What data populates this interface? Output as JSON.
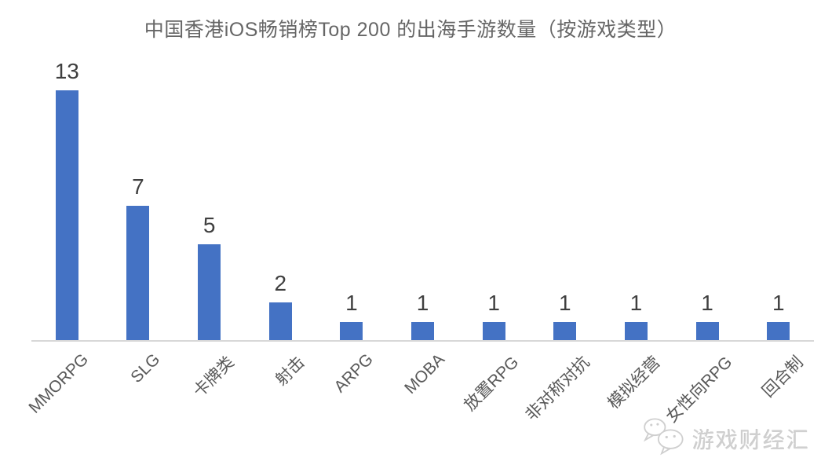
{
  "title": "中国香港iOS畅销榜Top 200 的出海手游数量（按游戏类型）",
  "watermark": {
    "text": "游戏财经汇",
    "icon": "wechat-chat-bubbles-icon"
  },
  "colors": {
    "bar": "#4472C4",
    "axis_line": "#D8D8D8",
    "title_text": "#666666",
    "value_label_text": "#3F3F3F",
    "category_text": "#595959",
    "watermark_text": "#D0D0D0"
  },
  "chart_data": {
    "type": "bar",
    "categories": [
      "MMORPG",
      "SLG",
      "卡牌类",
      "射击",
      "ARPG",
      "MOBA",
      "放置RPG",
      "非对称对抗",
      "模拟经营",
      "女性向RPG",
      "回合制"
    ],
    "values": [
      13,
      7,
      5,
      2,
      1,
      1,
      1,
      1,
      1,
      1,
      1
    ],
    "title": "中国香港iOS畅销榜Top 200 的出海手游数量（按游戏类型）",
    "xlabel": "",
    "ylabel": "",
    "ylim": [
      0,
      14
    ],
    "gridlines": false,
    "legend": "none",
    "data_labels": true,
    "x_tick_rotation": 45
  }
}
